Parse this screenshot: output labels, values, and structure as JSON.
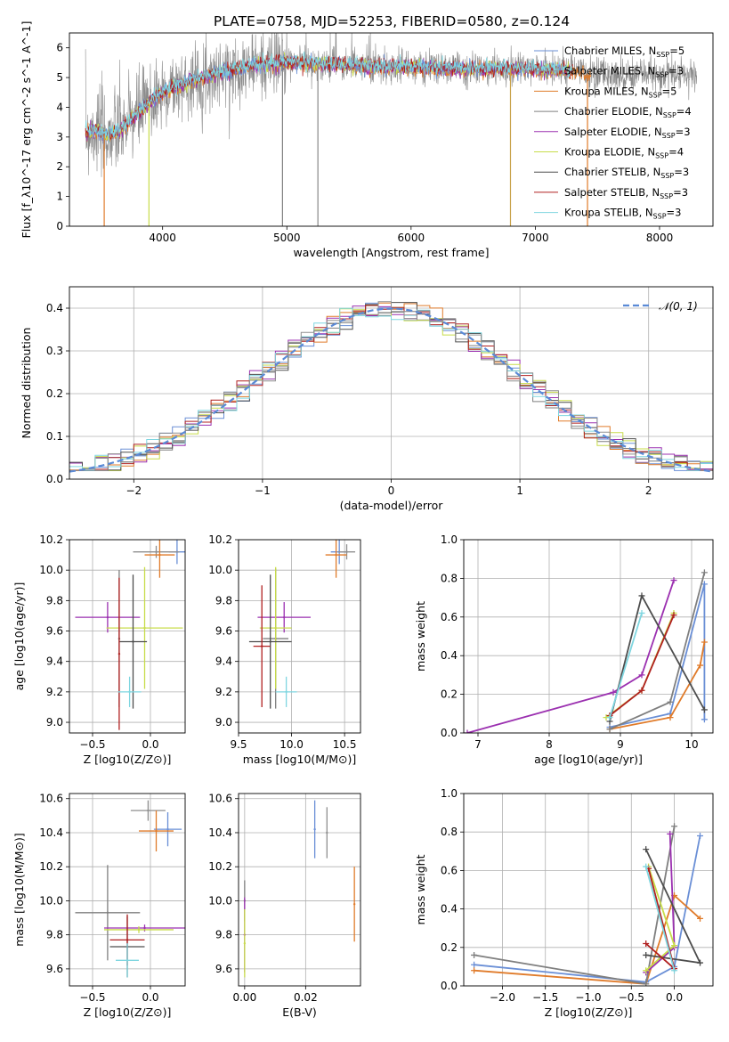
{
  "figure": {
    "title": "PLATE=0758, MJD=52253, FIBERID=0580, z=0.124"
  },
  "series_styles": [
    {
      "name": "Chabrier MILES",
      "color": "#6a8fd6"
    },
    {
      "name": "Salpeter MILES",
      "color": "#8f8f8f"
    },
    {
      "name": "Kroupa MILES",
      "color": "#e07b2a"
    },
    {
      "name": "Chabrier ELODIE",
      "color": "#7f7f7f"
    },
    {
      "name": "Salpeter ELODIE",
      "color": "#9b30b0"
    },
    {
      "name": "Kroupa ELODIE",
      "color": "#c8dc4a"
    },
    {
      "name": "Chabrier STELIB",
      "color": "#4d4d4d"
    },
    {
      "name": "Salpeter STELIB",
      "color": "#b02020"
    },
    {
      "name": "Kroupa STELIB",
      "color": "#7fd6e0"
    }
  ],
  "chart_data": [
    {
      "id": "spectrum",
      "type": "line",
      "xlabel": "wavelength [Angstrom, rest frame]",
      "ylabel": "Flux [f_λ10^-17 erg cm^-2 s^-1 A^-1]",
      "xlim": [
        3250,
        8430
      ],
      "ylim": [
        0,
        6.5
      ],
      "xticks": [
        4000,
        5000,
        6000,
        7000,
        8000
      ],
      "yticks": [
        0,
        1,
        2,
        3,
        4,
        5,
        6
      ],
      "grid": false,
      "legend_position": "top-right",
      "legend": [
        {
          "label": "Chabrier MILES, N",
          "sub": "SSP",
          "suffix": "=5"
        },
        {
          "label": "Salpeter MILES, N",
          "sub": "SSP",
          "suffix": "=3"
        },
        {
          "label": "Kroupa MILES, N",
          "sub": "SSP",
          "suffix": "=5"
        },
        {
          "label": "Chabrier ELODIE, N",
          "sub": "SSP",
          "suffix": "=4"
        },
        {
          "label": "Salpeter ELODIE, N",
          "sub": "SSP",
          "suffix": "=3"
        },
        {
          "label": "Kroupa ELODIE, N",
          "sub": "SSP",
          "suffix": "=4"
        },
        {
          "label": "Chabrier STELIB, N",
          "sub": "SSP",
          "suffix": "=3"
        },
        {
          "label": "Salpeter STELIB, N",
          "sub": "SSP",
          "suffix": "=3"
        },
        {
          "label": "Kroupa STELIB, N",
          "sub": "SSP",
          "suffix": "=3"
        }
      ],
      "continuum": {
        "x": [
          3380,
          3450,
          3550,
          3650,
          3750,
          3850,
          3950,
          4050,
          4200,
          4400,
          4600,
          4800,
          5000,
          5300,
          5600,
          6000,
          6400,
          6800,
          7200,
          7500
        ],
        "y": [
          3.15,
          3.25,
          3.05,
          3.2,
          3.6,
          4.0,
          4.35,
          4.6,
          4.85,
          5.1,
          5.3,
          5.45,
          5.5,
          5.45,
          5.4,
          5.35,
          5.3,
          5.3,
          5.25,
          5.1
        ]
      }
    },
    {
      "id": "residuals",
      "type": "bar",
      "xlabel": "(data-model)/error",
      "ylabel": "Normed distribution",
      "xlim": [
        -2.5,
        2.5
      ],
      "ylim": [
        0,
        0.45
      ],
      "xticks": [
        -2,
        -1,
        0,
        1,
        2
      ],
      "yticks": [
        0.0,
        0.1,
        0.2,
        0.3,
        0.4
      ],
      "grid": true,
      "legend_position": "top-right",
      "legend_label": "𝒩(0, 1)",
      "bin_width": 0.1
    },
    {
      "id": "age-vs-Z",
      "type": "scatter",
      "xlabel": "Z [log10(Z/Z⊙)]",
      "ylabel": "age  [log10(age/yr)]",
      "xlim": [
        -0.7,
        0.3
      ],
      "ylim": [
        8.93,
        10.2
      ],
      "xticks": [
        -0.5,
        0.0
      ],
      "yticks": [
        9.0,
        9.2,
        9.4,
        9.6,
        9.8,
        10.0,
        10.2
      ],
      "grid": true,
      "points": [
        {
          "x": 0.23,
          "xerr": 0.07,
          "y": 10.12,
          "yerr": 0.08
        },
        {
          "x": 0.05,
          "xerr": 0.2,
          "y": 10.12,
          "yerr": 0.04
        },
        {
          "x": 0.08,
          "xerr": 0.13,
          "y": 10.1,
          "yerr": 0.15
        },
        {
          "x": -0.27,
          "xerr": 0.0,
          "y": 9.55,
          "yerr": 0.45
        },
        {
          "x": -0.37,
          "xerr": 0.28,
          "y": 9.69,
          "yerr": 0.1
        },
        {
          "x": -0.05,
          "xerr": 0.33,
          "y": 9.62,
          "yerr": 0.4
        },
        {
          "x": -0.15,
          "xerr": 0.12,
          "y": 9.53,
          "yerr": 0.44
        },
        {
          "x": -0.27,
          "xerr": 0.0,
          "y": 9.45,
          "yerr": 0.5
        },
        {
          "x": -0.18,
          "xerr": 0.1,
          "y": 9.2,
          "yerr": 0.1
        }
      ]
    },
    {
      "id": "age-vs-mass",
      "type": "scatter",
      "xlabel": "mass [log10(M/M⊙)]",
      "ylabel": "",
      "xlim": [
        9.5,
        10.65
      ],
      "ylim": [
        8.93,
        10.2
      ],
      "xticks": [
        9.5,
        10.0,
        10.5
      ],
      "yticks": [
        9.0,
        9.2,
        9.4,
        9.6,
        9.8,
        10.0,
        10.2
      ],
      "grid": true,
      "points": [
        {
          "x": 10.45,
          "xerr": 0.08,
          "y": 10.12,
          "yerr": 0.08
        },
        {
          "x": 10.52,
          "xerr": 0.08,
          "y": 10.12,
          "yerr": 0.05
        },
        {
          "x": 10.42,
          "xerr": 0.1,
          "y": 10.1,
          "yerr": 0.15
        },
        {
          "x": 9.85,
          "xerr": 0.12,
          "y": 9.55,
          "yerr": 0.46
        },
        {
          "x": 9.93,
          "xerr": 0.25,
          "y": 9.69,
          "yerr": 0.1
        },
        {
          "x": 9.85,
          "xerr": 0.15,
          "y": 9.62,
          "yerr": 0.4
        },
        {
          "x": 9.8,
          "xerr": 0.2,
          "y": 9.53,
          "yerr": 0.44
        },
        {
          "x": 9.72,
          "xerr": 0.08,
          "y": 9.5,
          "yerr": 0.4
        },
        {
          "x": 9.95,
          "xerr": 0.1,
          "y": 9.2,
          "yerr": 0.1
        }
      ]
    },
    {
      "id": "weight-vs-age",
      "type": "line",
      "xlabel": "age  [log10(age/yr)]",
      "ylabel": "mass weight",
      "xlim": [
        6.8,
        10.3
      ],
      "ylim": [
        0,
        1.0
      ],
      "xticks": [
        7,
        8,
        9,
        10
      ],
      "yticks": [
        0.0,
        0.2,
        0.4,
        0.6,
        0.8,
        1.0
      ],
      "grid": true,
      "series": [
        {
          "x": [
            8.85,
            9.7,
            10.18,
            10.18
          ],
          "y": [
            0.03,
            0.1,
            0.77,
            0.07
          ]
        },
        {
          "x": [
            8.85,
            9.7,
            10.12,
            10.18
          ],
          "y": [
            0.02,
            0.08,
            0.35,
            0.47
          ]
        },
        {
          "x": [
            8.85,
            9.7,
            10.18
          ],
          "y": [
            0.02,
            0.16,
            0.83
          ]
        },
        {
          "x": [
            6.85,
            8.9,
            9.3,
            9.75
          ],
          "y": [
            0.0,
            0.21,
            0.3,
            0.79
          ]
        },
        {
          "x": [
            8.8,
            9.3,
            9.75
          ],
          "y": [
            0.08,
            0.22,
            0.62
          ]
        },
        {
          "x": [
            8.85,
            9.3,
            10.18
          ],
          "y": [
            0.06,
            0.71,
            0.12
          ]
        },
        {
          "x": [
            8.85,
            9.3,
            9.75
          ],
          "y": [
            0.09,
            0.22,
            0.61
          ]
        },
        {
          "x": [
            8.85,
            9.3
          ],
          "y": [
            0.08,
            0.62
          ]
        }
      ]
    },
    {
      "id": "mass-vs-Z",
      "type": "scatter",
      "xlabel": "Z [log10(Z/Z⊙)]",
      "ylabel": "mass [log10(M/M⊙)]",
      "xlim": [
        -0.7,
        0.3
      ],
      "ylim": [
        9.5,
        10.63
      ],
      "xticks": [
        -0.5,
        0.0
      ],
      "yticks": [
        9.6,
        9.8,
        10.0,
        10.2,
        10.4,
        10.6
      ],
      "grid": true,
      "points": [
        {
          "x": 0.15,
          "xerr": 0.12,
          "y": 10.42,
          "yerr": 0.1
        },
        {
          "x": -0.02,
          "xerr": 0.15,
          "y": 10.53,
          "yerr": 0.06
        },
        {
          "x": 0.05,
          "xerr": 0.15,
          "y": 10.41,
          "yerr": 0.12
        },
        {
          "x": -0.37,
          "xerr": 0.28,
          "y": 9.93,
          "yerr": 0.28
        },
        {
          "x": -0.05,
          "xerr": 0.35,
          "y": 9.84,
          "yerr": 0.02
        },
        {
          "x": -0.1,
          "xerr": 0.3,
          "y": 9.83,
          "yerr": 0.02
        },
        {
          "x": -0.2,
          "xerr": 0.15,
          "y": 9.73,
          "yerr": 0.18
        },
        {
          "x": -0.2,
          "xerr": 0.15,
          "y": 9.77,
          "yerr": 0.15
        },
        {
          "x": -0.2,
          "xerr": 0.1,
          "y": 9.65,
          "yerr": 0.1
        }
      ]
    },
    {
      "id": "mass-vs-EBV",
      "type": "scatter",
      "xlabel": "E(B-V)",
      "ylabel": "",
      "xlim": [
        -0.002,
        0.038
      ],
      "ylim": [
        9.5,
        10.63
      ],
      "xticks": [
        0.0,
        0.02
      ],
      "yticks": [
        9.6,
        9.8,
        10.0,
        10.2,
        10.4,
        10.6
      ],
      "grid": true,
      "points": [
        {
          "x": 0.023,
          "y": 10.42,
          "yerr": 0.17
        },
        {
          "x": 0.027,
          "y": 10.4,
          "yerr": 0.15
        },
        {
          "x": 0.036,
          "y": 9.98,
          "yerr": 0.22
        },
        {
          "x": 0.0,
          "y": 10.0,
          "yerr": 0.12
        },
        {
          "x": 0.0,
          "y": 9.8,
          "yerr": 0.22
        },
        {
          "x": 0.0,
          "y": 9.75,
          "yerr": 0.2
        }
      ]
    },
    {
      "id": "weight-vs-Z",
      "type": "line",
      "xlabel": "Z [log10(Z/Z⊙)]",
      "ylabel": "mass weight",
      "xlim": [
        -2.45,
        0.45
      ],
      "ylim": [
        0,
        1.0
      ],
      "xticks": [
        -2.0,
        -1.5,
        -1.0,
        -0.5,
        0.0
      ],
      "yticks": [
        0.0,
        0.2,
        0.4,
        0.6,
        0.8,
        1.0
      ],
      "grid": true,
      "series": [
        {
          "x": [
            -2.33,
            -0.33,
            0.0,
            0.3
          ],
          "y": [
            0.11,
            0.02,
            0.1,
            0.78
          ]
        },
        {
          "x": [
            -2.33,
            -0.33,
            0.0,
            0.3
          ],
          "y": [
            0.08,
            0.01,
            0.47,
            0.35
          ]
        },
        {
          "x": [
            -2.33,
            -0.33,
            0.0
          ],
          "y": [
            0.16,
            0.01,
            0.83
          ]
        },
        {
          "x": [
            -0.33,
            0.0,
            -0.05
          ],
          "y": [
            0.07,
            0.2,
            0.79
          ]
        },
        {
          "x": [
            -0.33,
            0.0,
            -0.3
          ],
          "y": [
            0.08,
            0.21,
            0.62
          ]
        },
        {
          "x": [
            -0.33,
            0.3,
            -0.33
          ],
          "y": [
            0.16,
            0.12,
            0.71
          ]
        },
        {
          "x": [
            -0.33,
            0.0,
            -0.3
          ],
          "y": [
            0.22,
            0.09,
            0.61
          ]
        },
        {
          "x": [
            -0.33,
            0.0
          ],
          "y": [
            0.62,
            0.08
          ]
        }
      ]
    }
  ]
}
